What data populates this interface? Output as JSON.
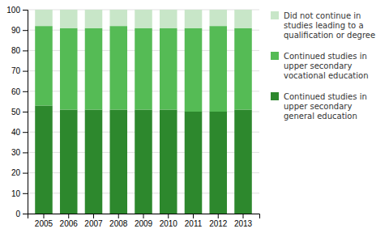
{
  "chart_data": {
    "type": "bar",
    "stacked": true,
    "categories": [
      "2005",
      "2006",
      "2007",
      "2008",
      "2009",
      "2010",
      "2011",
      "2012",
      "2013"
    ],
    "series": [
      {
        "name": "Continued studies in\nupper secondary\ngeneral education",
        "color": "#2d882d",
        "values": [
          53,
          51,
          51,
          51,
          51,
          51,
          50,
          50,
          51
        ]
      },
      {
        "name": "Continued studies in\nupper secondary\nvocational education",
        "color": "#55bb55",
        "values": [
          39,
          40,
          40,
          41,
          40,
          40,
          41,
          42,
          40
        ]
      },
      {
        "name": "Did not continue in\nstudies leading to a\nqualification or degree",
        "color": "#c8e6c8",
        "values": [
          8,
          9,
          9,
          8,
          9,
          9,
          9,
          8,
          9
        ]
      }
    ],
    "ylim": [
      0,
      100
    ],
    "yticks": [
      0,
      10,
      20,
      30,
      40,
      50,
      60,
      70,
      80,
      90,
      100
    ],
    "grid": true,
    "legend": "right"
  }
}
